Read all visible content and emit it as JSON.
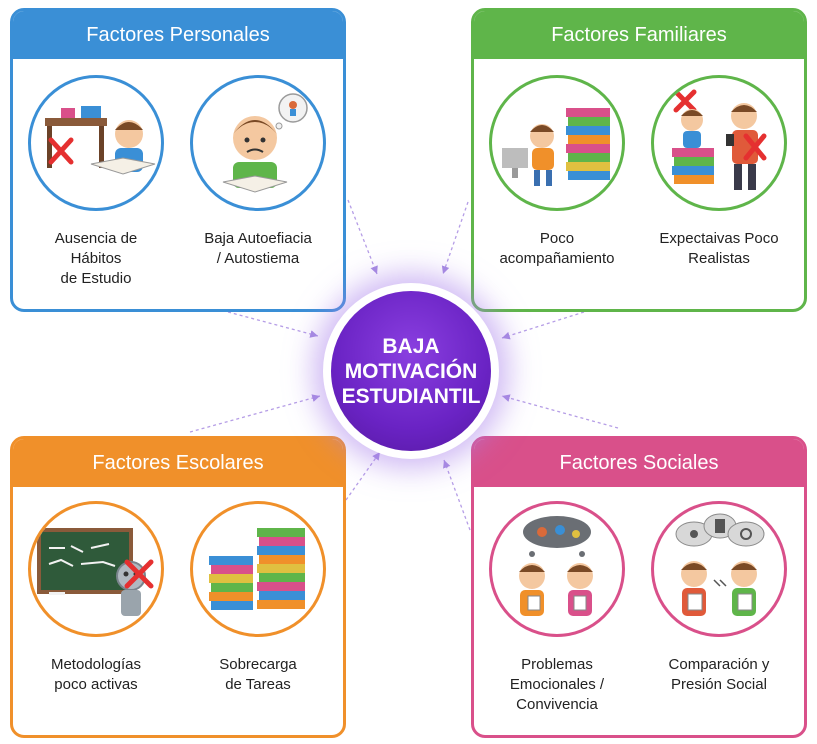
{
  "center": {
    "label": "BAJA\nMOTIVACIÓN\nESTUDIANTIL",
    "color": "#6a23c4"
  },
  "panels": [
    {
      "title": "Factores Personales",
      "color": "#3a8fd6",
      "items": [
        {
          "label": "Ausencia de\nHábitos\nde Estudio",
          "icon": "student-desk-icon"
        },
        {
          "label": "Baja Autoefiacia\n/ Autostiema",
          "icon": "sad-reader-icon"
        }
      ]
    },
    {
      "title": "Factores Familiares",
      "color": "#5fb54a",
      "items": [
        {
          "label": "Poco\nacompañamiento",
          "icon": "child-books-icon"
        },
        {
          "label": "Expectaivas Poco\nRealistas",
          "icon": "parent-child-icon"
        }
      ]
    },
    {
      "title": "Factores Escolares",
      "color": "#f0902a",
      "items": [
        {
          "label": "Metodologías\npoco activas",
          "icon": "chalkboard-robot-icon"
        },
        {
          "label": "Sobrecarga\nde Tareas",
          "icon": "book-stacks-icon"
        }
      ]
    },
    {
      "title": "Factores Sociales",
      "color": "#d9508a",
      "items": [
        {
          "label": "Problemas\nEmocionales /\nConvivencia",
          "icon": "kids-thought-cloud-icon"
        },
        {
          "label": "Comparación y\nPresión Social",
          "icon": "kids-comparison-icon"
        }
      ]
    }
  ]
}
